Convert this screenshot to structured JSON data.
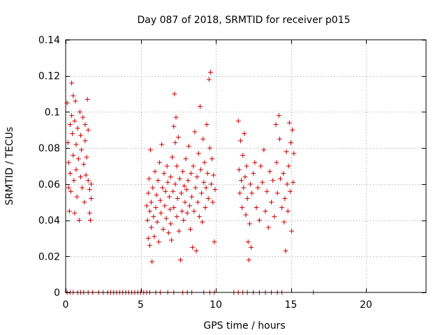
{
  "chart_data": {
    "type": "scatter",
    "title": "Day 087 of 2018, SRMTID for receiver p015",
    "xlabel": "GPS time / hours",
    "ylabel": "SRMTID / TECUs",
    "xlim": [
      0,
      24
    ],
    "ylim": [
      0,
      0.14
    ],
    "x_ticks": [
      0,
      5,
      10,
      15,
      20
    ],
    "x_tick_labels": [
      "0",
      "5",
      "10",
      "15",
      "20"
    ],
    "y_ticks": [
      0,
      0.02,
      0.04,
      0.06,
      0.08,
      0.1,
      0.12,
      0.14
    ],
    "y_tick_labels": [
      "0",
      "0.02",
      "0.04",
      "0.06",
      "0.08",
      "0.1",
      "0.12",
      "0.14"
    ],
    "grid": true,
    "marker": "+",
    "color": "#cc0000",
    "series": [
      {
        "name": "SRMTID",
        "points": [
          [
            0.1,
            0.105
          ],
          [
            0.15,
            0.083
          ],
          [
            0.2,
            0.072
          ],
          [
            0.2,
            0.058
          ],
          [
            0.25,
            0.045
          ],
          [
            0.3,
            0.093
          ],
          [
            0.3,
            0.066
          ],
          [
            0.35,
            0.056
          ],
          [
            0.4,
            0.116
          ],
          [
            0.4,
            0.098
          ],
          [
            0.45,
            0.088
          ],
          [
            0.5,
            0.109
          ],
          [
            0.5,
            0.076
          ],
          [
            0.55,
            0.062
          ],
          [
            0.6,
            0.044
          ],
          [
            0.6,
            0.095
          ],
          [
            0.65,
            0.106
          ],
          [
            0.7,
            0.082
          ],
          [
            0.7,
            0.068
          ],
          [
            0.75,
            0.053
          ],
          [
            0.8,
            0.091
          ],
          [
            0.85,
            0.074
          ],
          [
            0.9,
            0.04
          ],
          [
            0.95,
            0.1
          ],
          [
            1.0,
            0.087
          ],
          [
            1.0,
            0.064
          ],
          [
            1.05,
            0.079
          ],
          [
            1.1,
            0.058
          ],
          [
            1.15,
            0.097
          ],
          [
            1.2,
            0.071
          ],
          [
            1.25,
            0.05
          ],
          [
            1.3,
            0.093
          ],
          [
            1.3,
            0.084
          ],
          [
            1.35,
            0.065
          ],
          [
            1.4,
            0.075
          ],
          [
            1.45,
            0.107
          ],
          [
            1.5,
            0.09
          ],
          [
            1.5,
            0.062
          ],
          [
            1.6,
            0.044
          ],
          [
            1.6,
            0.057
          ],
          [
            1.65,
            0.04
          ],
          [
            1.7,
            0.06
          ],
          [
            1.7,
            0.052
          ],
          [
            5.4,
            0.048
          ],
          [
            5.45,
            0.04
          ],
          [
            5.5,
            0.055
          ],
          [
            5.5,
            0.03
          ],
          [
            5.55,
            0.063
          ],
          [
            5.6,
            0.045
          ],
          [
            5.6,
            0.026
          ],
          [
            5.65,
            0.079
          ],
          [
            5.7,
            0.05
          ],
          [
            5.7,
            0.036
          ],
          [
            5.75,
            0.017
          ],
          [
            5.8,
            0.058
          ],
          [
            5.85,
            0.042
          ],
          [
            5.9,
            0.031
          ],
          [
            5.95,
            0.067
          ],
          [
            6.0,
            0.047
          ],
          [
            6.05,
            0.054
          ],
          [
            6.1,
            0.039
          ],
          [
            6.15,
            0.062
          ],
          [
            6.2,
            0.028
          ],
          [
            6.25,
            0.072
          ],
          [
            6.3,
            0.051
          ],
          [
            6.35,
            0.044
          ],
          [
            6.4,
            0.082
          ],
          [
            6.45,
            0.058
          ],
          [
            6.5,
            0.035
          ],
          [
            6.55,
            0.066
          ],
          [
            6.6,
            0.048
          ],
          [
            6.65,
            0.056
          ],
          [
            6.7,
            0.041
          ],
          [
            6.75,
            0.07
          ],
          [
            6.8,
            0.061
          ],
          [
            6.85,
            0.033
          ],
          [
            6.9,
            0.053
          ],
          [
            6.95,
            0.046
          ],
          [
            7.0,
            0.064
          ],
          [
            7.0,
            0.038
          ],
          [
            7.05,
            0.029
          ],
          [
            7.1,
            0.075
          ],
          [
            7.15,
            0.056
          ],
          [
            7.2,
            0.092
          ],
          [
            7.2,
            0.047
          ],
          [
            7.25,
            0.11
          ],
          [
            7.3,
            0.083
          ],
          [
            7.3,
            0.06
          ],
          [
            7.35,
            0.097
          ],
          [
            7.4,
            0.07
          ],
          [
            7.4,
            0.042
          ],
          [
            7.45,
            0.052
          ],
          [
            7.5,
            0.086
          ],
          [
            7.55,
            0.034
          ],
          [
            7.6,
            0.063
          ],
          [
            7.65,
            0.018
          ],
          [
            7.7,
            0.055
          ],
          [
            7.75,
            0.045
          ],
          [
            7.8,
            0.067
          ],
          [
            7.85,
            0.04
          ],
          [
            7.9,
            0.059
          ],
          [
            7.95,
            0.05
          ],
          [
            8.0,
            0.074
          ],
          [
            8.05,
            0.057
          ],
          [
            8.1,
            0.044
          ],
          [
            8.15,
            0.062
          ],
          [
            8.2,
            0.081
          ],
          [
            8.25,
            0.048
          ],
          [
            8.3,
            0.035
          ],
          [
            8.35,
            0.066
          ],
          [
            8.4,
            0.053
          ],
          [
            8.45,
            0.025
          ],
          [
            8.5,
            0.07
          ],
          [
            8.55,
            0.045
          ],
          [
            8.6,
            0.089
          ],
          [
            8.65,
            0.058
          ],
          [
            8.7,
            0.023
          ],
          [
            8.75,
            0.064
          ],
          [
            8.8,
            0.05
          ],
          [
            8.85,
            0.077
          ],
          [
            8.9,
            0.042
          ],
          [
            8.95,
            0.103
          ],
          [
            9.0,
            0.068
          ],
          [
            9.05,
            0.055
          ],
          [
            9.1,
            0.039
          ],
          [
            9.15,
            0.085
          ],
          [
            9.2,
            0.061
          ],
          [
            9.25,
            0.072
          ],
          [
            9.3,
            0.047
          ],
          [
            9.35,
            0.058
          ],
          [
            9.4,
            0.093
          ],
          [
            9.45,
            0.066
          ],
          [
            9.5,
            0.052
          ],
          [
            9.55,
            0.118
          ],
          [
            9.6,
            0.08
          ],
          [
            9.65,
            0.122
          ],
          [
            9.7,
            0.06
          ],
          [
            9.75,
            0.074
          ],
          [
            9.8,
            0.05
          ],
          [
            9.85,
            0.065
          ],
          [
            9.9,
            0.028
          ],
          [
            9.95,
            0.057
          ],
          [
            11.5,
            0.095
          ],
          [
            11.55,
            0.068
          ],
          [
            11.6,
            0.055
          ],
          [
            11.65,
            0.084
          ],
          [
            11.7,
            0.062
          ],
          [
            11.75,
            0.047
          ],
          [
            11.8,
            0.076
          ],
          [
            11.85,
            0.058
          ],
          [
            11.9,
            0.088
          ],
          [
            11.95,
            0.064
          ],
          [
            12.0,
            0.043
          ],
          [
            12.05,
            0.07
          ],
          [
            12.1,
            0.052
          ],
          [
            12.15,
            0.028
          ],
          [
            12.2,
            0.018
          ],
          [
            12.25,
            0.038
          ],
          [
            12.3,
            0.06
          ],
          [
            12.35,
            0.025
          ],
          [
            12.4,
            0.055
          ],
          [
            12.5,
            0.066
          ],
          [
            12.6,
            0.072
          ],
          [
            12.7,
            0.047
          ],
          [
            12.8,
            0.058
          ],
          [
            12.9,
            0.04
          ],
          [
            13.0,
            0.07
          ],
          [
            13.1,
            0.061
          ],
          [
            13.2,
            0.079
          ],
          [
            13.3,
            0.045
          ],
          [
            13.4,
            0.056
          ],
          [
            13.5,
            0.036
          ],
          [
            13.6,
            0.067
          ],
          [
            13.7,
            0.05
          ],
          [
            13.8,
            0.062
          ],
          [
            13.9,
            0.042
          ],
          [
            14.0,
            0.093
          ],
          [
            14.05,
            0.072
          ],
          [
            14.1,
            0.055
          ],
          [
            14.2,
            0.098
          ],
          [
            14.25,
            0.085
          ],
          [
            14.3,
            0.063
          ],
          [
            14.4,
            0.047
          ],
          [
            14.5,
            0.066
          ],
          [
            14.55,
            0.039
          ],
          [
            14.6,
            0.052
          ],
          [
            14.65,
            0.023
          ],
          [
            14.7,
            0.078
          ],
          [
            14.75,
            0.06
          ],
          [
            14.8,
            0.045
          ],
          [
            14.85,
            0.07
          ],
          [
            14.9,
            0.094
          ],
          [
            14.95,
            0.056
          ],
          [
            15.0,
            0.083
          ],
          [
            15.05,
            0.034
          ],
          [
            15.1,
            0.09
          ],
          [
            15.15,
            0.061
          ],
          [
            15.2,
            0.077
          ]
        ],
        "zero_points_x": [
          0.1,
          0.3,
          0.5,
          0.8,
          1.0,
          1.2,
          1.5,
          1.8,
          2.2,
          2.5,
          2.8,
          3.0,
          3.2,
          3.4,
          3.6,
          3.8,
          4.0,
          4.2,
          4.4,
          4.6,
          4.8,
          5.0,
          5.2,
          5.4,
          5.6,
          6.0,
          6.3,
          6.8,
          7.2,
          7.8,
          8.1,
          8.4,
          9.2,
          9.6,
          9.9,
          11.2,
          11.5,
          11.8,
          12.1,
          12.5,
          12.9,
          13.3,
          13.7,
          14.1,
          14.4,
          16.5
        ]
      }
    ]
  }
}
